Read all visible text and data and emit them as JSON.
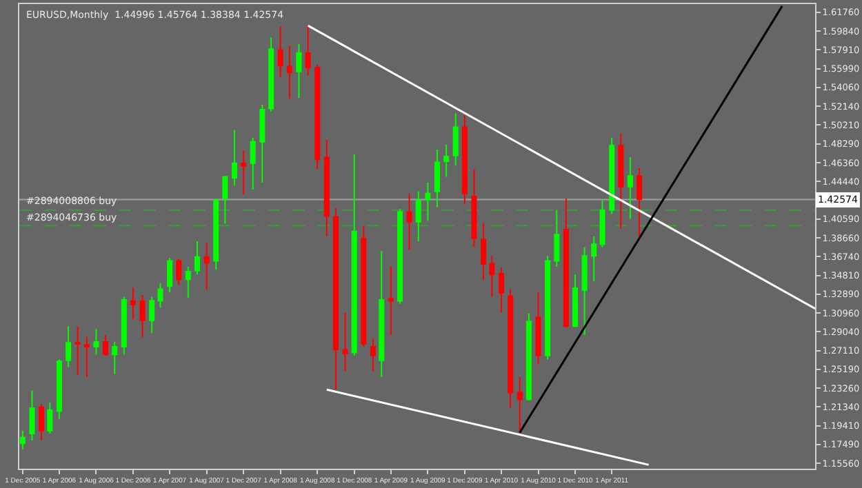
{
  "chart_data": {
    "type": "candlestick",
    "title": "EURUSD,Monthly  1.44996 1.45764 1.38384 1.42574",
    "x": [
      "2005-12",
      "2006-01",
      "2006-02",
      "2006-03",
      "2006-04",
      "2006-05",
      "2006-06",
      "2006-07",
      "2006-08",
      "2006-09",
      "2006-10",
      "2006-11",
      "2006-12",
      "2007-01",
      "2007-02",
      "2007-03",
      "2007-04",
      "2007-05",
      "2007-06",
      "2007-07",
      "2007-08",
      "2007-09",
      "2007-10",
      "2007-11",
      "2007-12",
      "2008-01",
      "2008-02",
      "2008-03",
      "2008-04",
      "2008-05",
      "2008-06",
      "2008-07",
      "2008-08",
      "2008-09",
      "2008-10",
      "2008-11",
      "2008-12",
      "2009-01",
      "2009-02",
      "2009-03",
      "2009-04",
      "2009-05",
      "2009-06",
      "2009-07",
      "2009-08",
      "2009-09",
      "2009-10",
      "2009-11",
      "2009-12",
      "2010-01",
      "2010-02",
      "2010-03",
      "2010-04",
      "2010-05",
      "2010-06",
      "2010-07",
      "2010-08",
      "2010-09",
      "2010-10",
      "2010-11",
      "2010-12",
      "2011-01",
      "2011-02",
      "2011-03",
      "2011-04",
      "2011-05",
      "2011-06",
      "2011-07"
    ],
    "ohlc": [
      [
        1.176,
        1.189,
        1.17,
        1.182
      ],
      [
        1.186,
        1.23,
        1.179,
        1.212
      ],
      [
        1.213,
        1.216,
        1.179,
        1.189
      ],
      [
        1.189,
        1.218,
        1.186,
        1.21
      ],
      [
        1.209,
        1.262,
        1.201,
        1.26
      ],
      [
        1.261,
        1.296,
        1.254,
        1.279
      ],
      [
        1.279,
        1.296,
        1.246,
        1.278
      ],
      [
        1.277,
        1.285,
        1.244,
        1.275
      ],
      [
        1.275,
        1.293,
        1.267,
        1.28
      ],
      [
        1.28,
        1.287,
        1.266,
        1.267
      ],
      [
        1.267,
        1.28,
        1.247,
        1.275
      ],
      [
        1.275,
        1.326,
        1.267,
        1.323
      ],
      [
        1.322,
        1.336,
        1.303,
        1.318
      ],
      [
        1.322,
        1.328,
        1.285,
        1.302
      ],
      [
        1.302,
        1.326,
        1.289,
        1.322
      ],
      [
        1.322,
        1.34,
        1.315,
        1.334
      ],
      [
        1.337,
        1.366,
        1.331,
        1.363
      ],
      [
        1.363,
        1.365,
        1.338,
        1.344
      ],
      [
        1.344,
        1.357,
        1.325,
        1.352
      ],
      [
        1.353,
        1.383,
        1.349,
        1.367
      ],
      [
        1.367,
        1.382,
        1.334,
        1.361
      ],
      [
        1.363,
        1.427,
        1.354,
        1.425
      ],
      [
        1.427,
        1.45,
        1.401,
        1.449
      ],
      [
        1.448,
        1.497,
        1.44,
        1.463
      ],
      [
        1.463,
        1.476,
        1.431,
        1.46
      ],
      [
        1.463,
        1.489,
        1.436,
        1.485
      ],
      [
        1.485,
        1.523,
        1.443,
        1.518
      ],
      [
        1.519,
        1.592,
        1.516,
        1.58
      ],
      [
        1.579,
        1.603,
        1.551,
        1.563
      ],
      [
        1.562,
        1.583,
        1.529,
        1.556
      ],
      [
        1.557,
        1.585,
        1.53,
        1.576
      ],
      [
        1.576,
        1.604,
        1.553,
        1.561
      ],
      [
        1.561,
        1.564,
        1.457,
        1.467
      ],
      [
        1.469,
        1.487,
        1.388,
        1.409
      ],
      [
        1.408,
        1.417,
        1.231,
        1.272
      ],
      [
        1.272,
        1.31,
        1.25,
        1.268
      ],
      [
        1.269,
        1.472,
        1.266,
        1.393
      ],
      [
        1.386,
        1.399,
        1.275,
        1.278
      ],
      [
        1.275,
        1.283,
        1.25,
        1.266
      ],
      [
        1.261,
        1.373,
        1.244,
        1.323
      ],
      [
        1.324,
        1.357,
        1.287,
        1.322
      ],
      [
        1.322,
        1.416,
        1.319,
        1.413
      ],
      [
        1.413,
        1.432,
        1.374,
        1.403
      ],
      [
        1.403,
        1.434,
        1.383,
        1.425
      ],
      [
        1.426,
        1.443,
        1.404,
        1.432
      ],
      [
        1.434,
        1.477,
        1.418,
        1.464
      ],
      [
        1.465,
        1.482,
        1.449,
        1.47
      ],
      [
        1.471,
        1.514,
        1.461,
        1.5
      ],
      [
        1.5,
        1.512,
        1.421,
        1.432
      ],
      [
        1.429,
        1.457,
        1.377,
        1.386
      ],
      [
        1.385,
        1.402,
        1.343,
        1.36
      ],
      [
        1.36,
        1.368,
        1.326,
        1.349
      ],
      [
        1.35,
        1.356,
        1.31,
        1.33
      ],
      [
        1.327,
        1.334,
        1.212,
        1.228
      ],
      [
        1.228,
        1.244,
        1.187,
        1.221
      ],
      [
        1.221,
        1.309,
        1.22,
        1.301
      ],
      [
        1.305,
        1.331,
        1.257,
        1.266
      ],
      [
        1.266,
        1.368,
        1.262,
        1.363
      ],
      [
        1.363,
        1.415,
        1.357,
        1.39
      ],
      [
        1.395,
        1.427,
        1.295,
        1.296
      ],
      [
        1.296,
        1.349,
        1.295,
        1.335
      ],
      [
        1.333,
        1.377,
        1.287,
        1.368
      ],
      [
        1.368,
        1.388,
        1.342,
        1.38
      ],
      [
        1.38,
        1.425,
        1.377,
        1.415
      ],
      [
        1.415,
        1.489,
        1.411,
        1.481
      ],
      [
        1.481,
        1.493,
        1.396,
        1.439
      ],
      [
        1.439,
        1.469,
        1.406,
        1.45
      ],
      [
        1.45,
        1.458,
        1.384,
        1.426
      ]
    ],
    "colors": [
      "#00ff00",
      "#00ff00",
      "#ff0000",
      "#00ff00",
      "#00ff00",
      "#00ff00",
      "#ff0000",
      "#ff0000",
      "#00ff00",
      "#ff0000",
      "#00ff00",
      "#00ff00",
      "#ff0000",
      "#ff0000",
      "#00ff00",
      "#00ff00",
      "#00ff00",
      "#ff0000",
      "#00ff00",
      "#00ff00",
      "#ff0000",
      "#00ff00",
      "#00ff00",
      "#00ff00",
      "#ff0000",
      "#00ff00",
      "#00ff00",
      "#00ff00",
      "#ff0000",
      "#ff0000",
      "#00ff00",
      "#ff0000",
      "#ff0000",
      "#ff0000",
      "#ff0000",
      "#ff0000",
      "#00ff00",
      "#ff0000",
      "#ff0000",
      "#00ff00",
      "#ff0000",
      "#00ff00",
      "#ff0000",
      "#00ff00",
      "#00ff00",
      "#00ff00",
      "#00ff00",
      "#00ff00",
      "#ff0000",
      "#ff0000",
      "#ff0000",
      "#ff0000",
      "#ff0000",
      "#ff0000",
      "#ff0000",
      "#00ff00",
      "#ff0000",
      "#00ff00",
      "#00ff00",
      "#ff0000",
      "#00ff00",
      "#00ff00",
      "#00ff00",
      "#00ff00",
      "#00ff00",
      "#ff0000",
      "#00ff00",
      "#ff0000"
    ],
    "series": [
      {
        "type": "line",
        "color": "#ffffff",
        "x": [
          "2008-07-01",
          "2013-02-01"
        ],
        "values": [
          1.604,
          1.314
        ]
      },
      {
        "type": "line",
        "color": "#ffffff",
        "x": [
          "2008-09-01",
          "2011-08-01"
        ],
        "values": [
          1.231,
          1.154
        ]
      },
      {
        "type": "line",
        "color": "#000000",
        "x": [
          "2010-06-01",
          "2012-10-15"
        ],
        "values": [
          1.187,
          1.624
        ]
      }
    ],
    "ref_lines": [
      {
        "axis": "y",
        "value": 1.42574,
        "label": "1.42574",
        "color": "#a0a0a0"
      },
      {
        "axis": "y",
        "value": 1.415,
        "label": "#2894008806 buy",
        "color": "#3f9a3f",
        "line_style": "dashed"
      },
      {
        "axis": "y",
        "value": 1.399,
        "label": "#2894046736 buy",
        "color": "#3f9a3f",
        "line_style": "dashed"
      }
    ],
    "xlim": [
      "2005-11-20",
      "2013-02-01"
    ],
    "xticks": [
      {
        "value": "2005-12-01",
        "label": "1 Dec 2005"
      },
      {
        "value": "2006-04-01",
        "label": "1 Apr 2006"
      },
      {
        "value": "2006-08-01",
        "label": "1 Aug 2006"
      },
      {
        "value": "2006-12-01",
        "label": "1 Dec 2006"
      },
      {
        "value": "2007-04-01",
        "label": "1 Apr 2007"
      },
      {
        "value": "2007-08-01",
        "label": "1 Aug 2007"
      },
      {
        "value": "2007-12-01",
        "label": "1 Dec 2007"
      },
      {
        "value": "2008-04-01",
        "label": "1 Apr 2008"
      },
      {
        "value": "2008-08-01",
        "label": "1 Aug 2008"
      },
      {
        "value": "2008-12-01",
        "label": "1 Dec 2008"
      },
      {
        "value": "2009-04-01",
        "label": "1 Apr 2009"
      },
      {
        "value": "2009-08-01",
        "label": "1 Aug 2009"
      },
      {
        "value": "2009-12-01",
        "label": "1 Dec 2009"
      },
      {
        "value": "2010-04-01",
        "label": "1 Apr 2010"
      },
      {
        "value": "2010-08-01",
        "label": "1 Aug 2010"
      },
      {
        "value": "2010-12-01",
        "label": "1 Dec 2010"
      },
      {
        "value": "2011-04-01",
        "label": "1 Apr 2011"
      }
    ],
    "ylim": [
      1.15,
      1.626
    ],
    "yticks": [
      {
        "value": 1.6176,
        "label": "1.61760"
      },
      {
        "value": 1.5984,
        "label": "1.59840"
      },
      {
        "value": 1.5791,
        "label": "1.57910"
      },
      {
        "value": 1.5599,
        "label": "1.55990"
      },
      {
        "value": 1.5406,
        "label": "1.54060"
      },
      {
        "value": 1.5214,
        "label": "1.52140"
      },
      {
        "value": 1.5021,
        "label": "1.50210"
      },
      {
        "value": 1.4829,
        "label": "1.48290"
      },
      {
        "value": 1.4636,
        "label": "1.46360"
      },
      {
        "value": 1.4444,
        "label": "1.44440"
      },
      {
        "value": 1.4059,
        "label": "1.40590"
      },
      {
        "value": 1.3866,
        "label": "1.38660"
      },
      {
        "value": 1.3674,
        "label": "1.36740"
      },
      {
        "value": 1.3481,
        "label": "1.34810"
      },
      {
        "value": 1.3289,
        "label": "1.32890"
      },
      {
        "value": 1.3096,
        "label": "1.30960"
      },
      {
        "value": 1.2904,
        "label": "1.29040"
      },
      {
        "value": 1.2711,
        "label": "1.27110"
      },
      {
        "value": 1.2519,
        "label": "1.25190"
      },
      {
        "value": 1.2326,
        "label": "1.23260"
      },
      {
        "value": 1.2134,
        "label": "1.21340"
      },
      {
        "value": 1.1941,
        "label": "1.19410"
      },
      {
        "value": 1.1749,
        "label": "1.17490"
      },
      {
        "value": 1.1556,
        "label": "1.15560"
      }
    ],
    "grid": false
  }
}
